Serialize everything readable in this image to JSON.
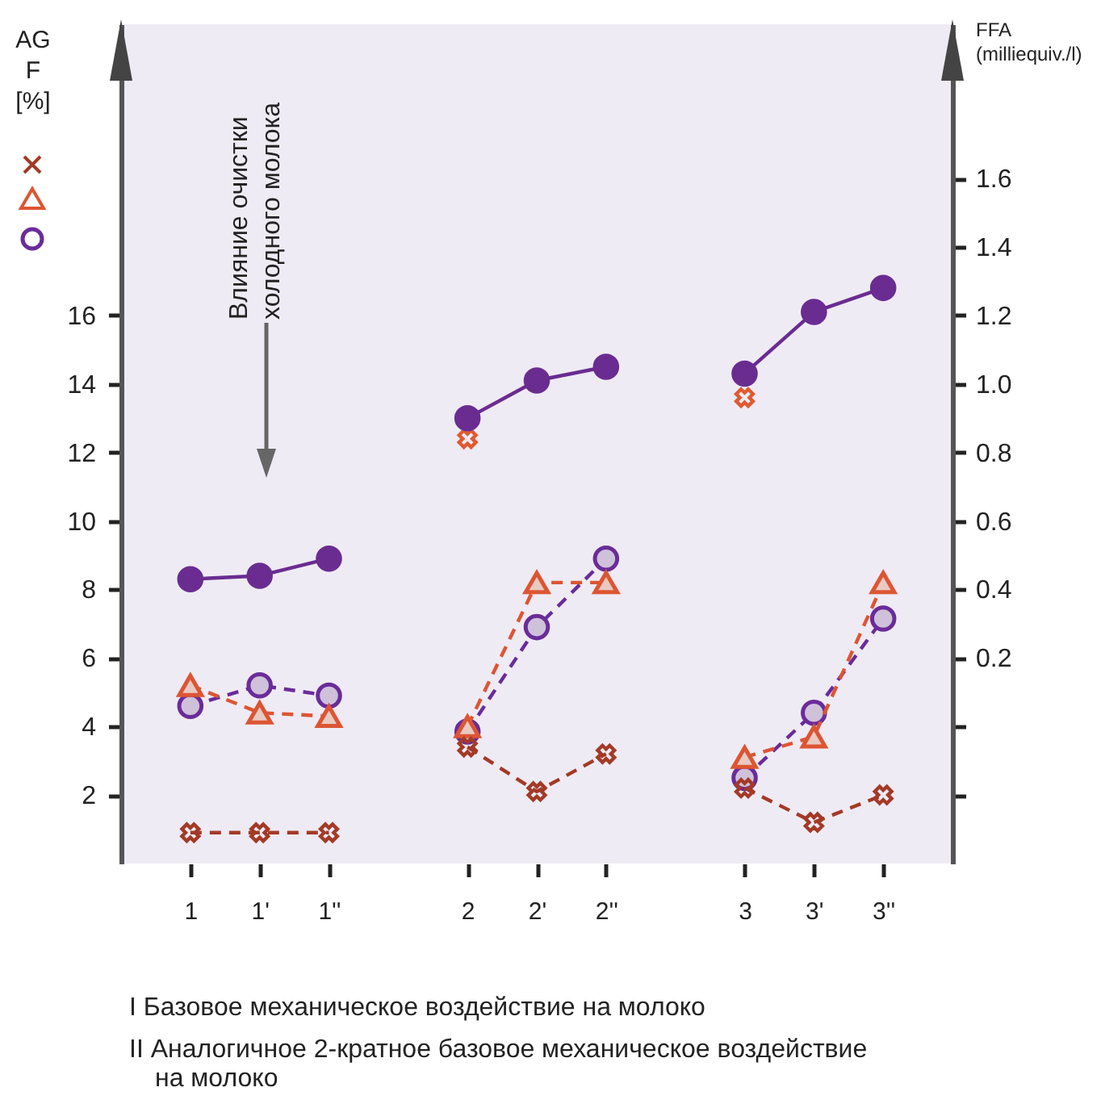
{
  "chart_data": {
    "type": "line",
    "categories": [
      "1",
      "1'",
      "1''",
      null,
      "2",
      "2'",
      "2''",
      null,
      "3",
      "3'",
      "3''"
    ],
    "ylabel": "AG F [%]",
    "y2label": "FFA (milliequiv./l)",
    "ylim": [
      0,
      24.5
    ],
    "yticks": [
      2,
      4,
      6,
      8,
      10,
      12,
      14,
      16
    ],
    "y2lim": [
      -0.4,
      2.05
    ],
    "y2ticks": [
      {
        "value": -0.2,
        "label": null
      },
      {
        "value": 0,
        "label": null
      },
      0.2,
      0.4,
      0.6,
      0.8,
      {
        "value": 1,
        "label": "1.0"
      },
      1.2,
      1.4,
      1.6
    ],
    "series": [
      {
        "marker": "cross",
        "line_style": "dashed",
        "color": "#a33a26",
        "values": [
          0.9,
          0.9,
          0.9,
          null,
          3.4,
          2.1,
          3.2,
          null,
          2.2,
          1.2,
          2.0
        ]
      },
      {
        "type": "scatter",
        "marker": "cross",
        "color": "#e05a30",
        "values": [
          null,
          null,
          null,
          null,
          12.4,
          null,
          null,
          null,
          13.6,
          null,
          null
        ]
      },
      {
        "marker": "triangle",
        "line_style": "dashed",
        "color": "#dd5533",
        "values": [
          5.2,
          4.4,
          4.3,
          null,
          4.0,
          8.2,
          8.2,
          null,
          3.1,
          3.7,
          8.2
        ]
      },
      {
        "marker": "circle",
        "line_style": "dashed",
        "color": "#6a2c9a",
        "values": [
          4.6,
          5.2,
          4.9,
          null,
          3.85,
          6.9,
          8.9,
          null,
          2.5,
          4.4,
          7.15
        ]
      },
      {
        "marker": "circle",
        "line_style": "solid",
        "color": "#6a2c91",
        "axis": "y2",
        "values": [
          0.43,
          0.44,
          0.49,
          null,
          0.9,
          1.01,
          1.05,
          null,
          1.03,
          1.21,
          1.28
        ]
      }
    ],
    "annotations": [
      "Влияние очистки холодного молока",
      "I Базовое механическое воздействие на молоко",
      "II Аналогичное 2-кратное базовое механическое воздействие на молоко"
    ]
  }
}
